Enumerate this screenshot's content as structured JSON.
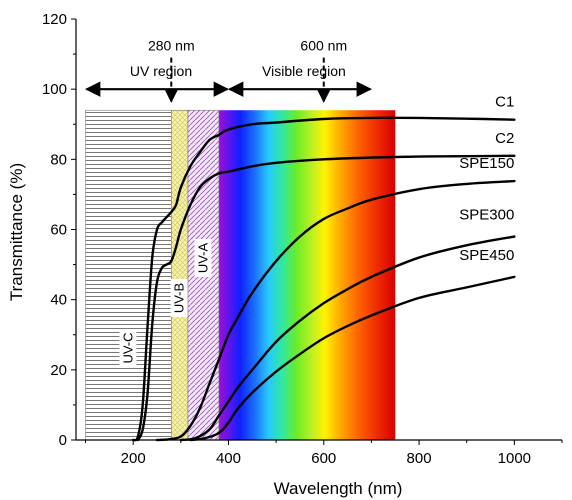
{
  "chart_data": {
    "type": "line",
    "xlabel": "Wavelength (nm)",
    "ylabel": "Transmittance (%)",
    "xlim": [
      80,
      1100
    ],
    "ylim": [
      0,
      120
    ],
    "x_ticks": [
      200,
      400,
      600,
      800,
      1000
    ],
    "y_ticks": [
      0,
      20,
      40,
      60,
      80,
      100,
      120
    ],
    "grid": false,
    "series": [
      {
        "name": "C1",
        "x": [
          200,
          210,
          220,
          230,
          240,
          250,
          260,
          270,
          280,
          290,
          300,
          320,
          340,
          360,
          380,
          400,
          450,
          500,
          600,
          700,
          800,
          900,
          1000
        ],
        "y": [
          0,
          1,
          10,
          32,
          52,
          60,
          62,
          63.5,
          65,
          67,
          72,
          78,
          82,
          85.5,
          87,
          88.5,
          90,
          90.5,
          91.5,
          91.8,
          91.8,
          91.6,
          91.3
        ]
      },
      {
        "name": "C2",
        "x": [
          210,
          220,
          230,
          240,
          250,
          260,
          270,
          280,
          290,
          300,
          320,
          340,
          360,
          380,
          400,
          450,
          500,
          600,
          700,
          800,
          900,
          1000
        ],
        "y": [
          0,
          3,
          13,
          33,
          45,
          49,
          50,
          51,
          55,
          60,
          67,
          72,
          74.5,
          76,
          76.5,
          78,
          79,
          80,
          80.5,
          80.8,
          80.9,
          81
        ]
      },
      {
        "name": "SPE150",
        "x": [
          250,
          275,
          300,
          320,
          340,
          360,
          380,
          400,
          420,
          450,
          500,
          550,
          600,
          650,
          700,
          800,
          900,
          1000
        ],
        "y": [
          0,
          0.2,
          1,
          4,
          9,
          16,
          23,
          30,
          35,
          42,
          51,
          58,
          63,
          66,
          68.5,
          71.5,
          73,
          73.8
        ]
      },
      {
        "name": "SPE300",
        "x": [
          300,
          330,
          360,
          380,
          400,
          420,
          450,
          500,
          550,
          600,
          650,
          700,
          800,
          900,
          1000
        ],
        "y": [
          0,
          0.5,
          3,
          7,
          11,
          15,
          20,
          28,
          34,
          39,
          43,
          46.5,
          52,
          55.5,
          58
        ]
      },
      {
        "name": "SPE450",
        "x": [
          320,
          350,
          380,
          400,
          420,
          450,
          500,
          550,
          600,
          650,
          700,
          800,
          900,
          1000
        ],
        "y": [
          0,
          0.5,
          2,
          5,
          9,
          13.5,
          19.5,
          24.5,
          29,
          32.5,
          35.5,
          40.5,
          43.5,
          46.5
        ]
      }
    ],
    "regions": [
      {
        "name": "UV-C",
        "from": 100,
        "to": 280,
        "pattern": "horizontal-lines"
      },
      {
        "name": "UV-B",
        "from": 280,
        "to": 315,
        "pattern": "yellow-crosshatch"
      },
      {
        "name": "UV-A",
        "from": 315,
        "to": 380,
        "pattern": "purple-diagonal"
      }
    ],
    "spectrum": {
      "from": 380,
      "to": 750,
      "top": 94
    },
    "range_arrows": [
      {
        "label": "UV region",
        "from": 100,
        "to": 400,
        "y": 100
      },
      {
        "label": "Visible region",
        "from": 400,
        "to": 700,
        "y": 100
      }
    ],
    "markers": [
      {
        "label": "280 nm",
        "x": 280
      },
      {
        "label": "600 nm",
        "x": 600
      }
    ]
  }
}
